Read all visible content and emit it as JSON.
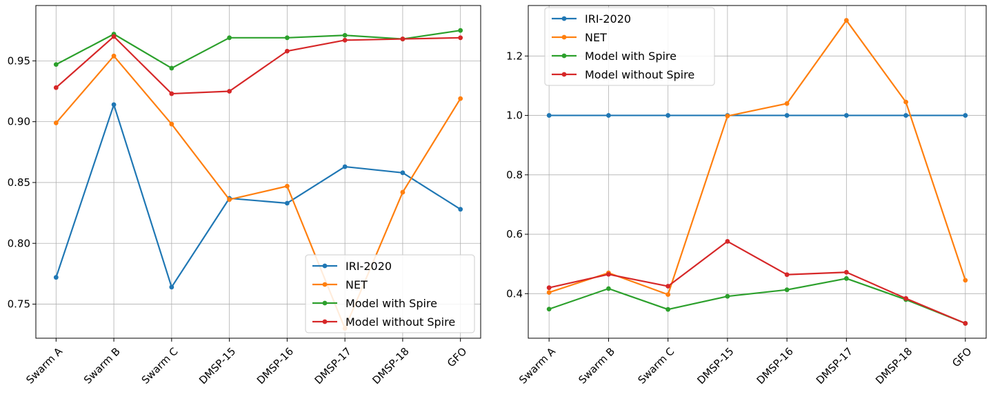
{
  "chart_data": [
    {
      "type": "line",
      "categories": [
        "Swarm A",
        "Swarm B",
        "Swarm C",
        "DMSP-15",
        "DMSP-16",
        "DMSP-17",
        "DMSP-18",
        "GFO"
      ],
      "ylim": [
        0.722,
        0.9955
      ],
      "yticks": [
        "0.75",
        "0.80",
        "0.85",
        "0.90",
        "0.95"
      ],
      "ytick_values": [
        0.75,
        0.8,
        0.85,
        0.9,
        0.95
      ],
      "grid": true,
      "legend": "lower-right",
      "series": [
        {
          "name": "IRI-2020",
          "color": "#1f77b4",
          "values": [
            0.772,
            0.914,
            0.764,
            0.837,
            0.833,
            0.863,
            0.858,
            0.828
          ]
        },
        {
          "name": "NET",
          "color": "#ff7f0e",
          "values": [
            0.899,
            0.954,
            0.898,
            0.836,
            0.847,
            0.73,
            0.842,
            0.919
          ]
        },
        {
          "name": "Model with Spire",
          "color": "#2ca02c",
          "values": [
            0.947,
            0.972,
            0.944,
            0.969,
            0.969,
            0.971,
            0.968,
            0.975
          ]
        },
        {
          "name": "Model without Spire",
          "color": "#d62728",
          "values": [
            0.928,
            0.97,
            0.923,
            0.925,
            0.958,
            0.967,
            0.968,
            0.969
          ]
        }
      ]
    },
    {
      "type": "line",
      "categories": [
        "Swarm A",
        "Swarm B",
        "Swarm C",
        "DMSP-15",
        "DMSP-16",
        "DMSP-17",
        "DMSP-18",
        "GFO"
      ],
      "ylim": [
        0.25,
        1.37
      ],
      "yticks": [
        "0.4",
        "0.6",
        "0.8",
        "1.0",
        "1.2"
      ],
      "ytick_values": [
        0.4,
        0.6,
        0.8,
        1.0,
        1.2
      ],
      "grid": true,
      "legend": "upper-left",
      "series": [
        {
          "name": "IRI-2020",
          "color": "#1f77b4",
          "values": [
            1.0,
            1.0,
            1.0,
            1.0,
            1.0,
            1.0,
            1.0,
            1.0
          ]
        },
        {
          "name": "NET",
          "color": "#ff7f0e",
          "values": [
            0.404,
            0.47,
            0.397,
            0.998,
            1.04,
            1.32,
            1.045,
            0.445
          ]
        },
        {
          "name": "Model with Spire",
          "color": "#2ca02c",
          "values": [
            0.348,
            0.417,
            0.347,
            0.391,
            0.413,
            0.451,
            0.38,
            0.3
          ]
        },
        {
          "name": "Model without Spire",
          "color": "#d62728",
          "values": [
            0.42,
            0.465,
            0.425,
            0.576,
            0.464,
            0.472,
            0.384,
            0.3
          ]
        }
      ]
    }
  ]
}
